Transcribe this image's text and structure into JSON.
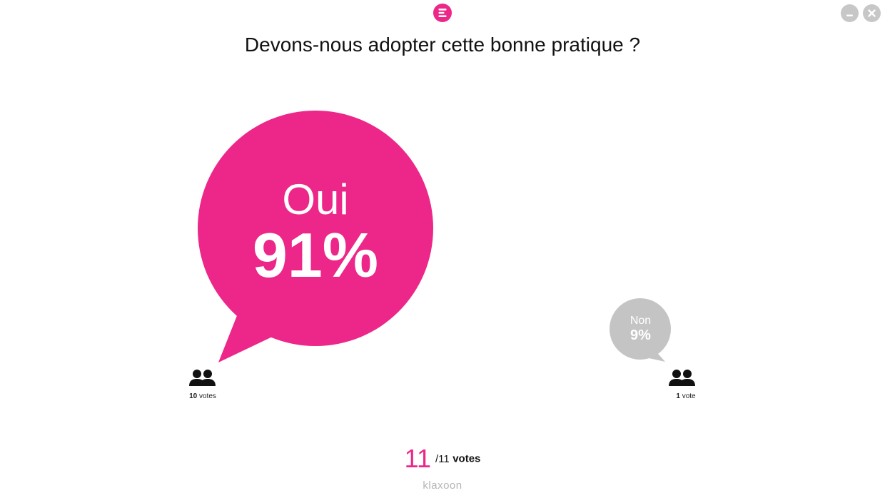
{
  "question": "Devons-nous adopter cette bonne pratique ?",
  "options": [
    {
      "label": "Oui",
      "percent": "91%",
      "votes_num": "10",
      "votes_word": "votes",
      "color": "#ec2789"
    },
    {
      "label": "Non",
      "percent": "9%",
      "votes_num": "1",
      "votes_word": "vote",
      "color": "#c4c4c4"
    }
  ],
  "total": {
    "count": "11",
    "of": "/11",
    "word": "votes"
  },
  "brand": "klaxoon",
  "icons": {
    "app": "klaxoon-logo-icon",
    "minimize": "minimize-icon",
    "close": "close-icon",
    "voters": "users-icon"
  },
  "colors": {
    "accent": "#ec2789",
    "secondary": "#c4c4c4"
  }
}
